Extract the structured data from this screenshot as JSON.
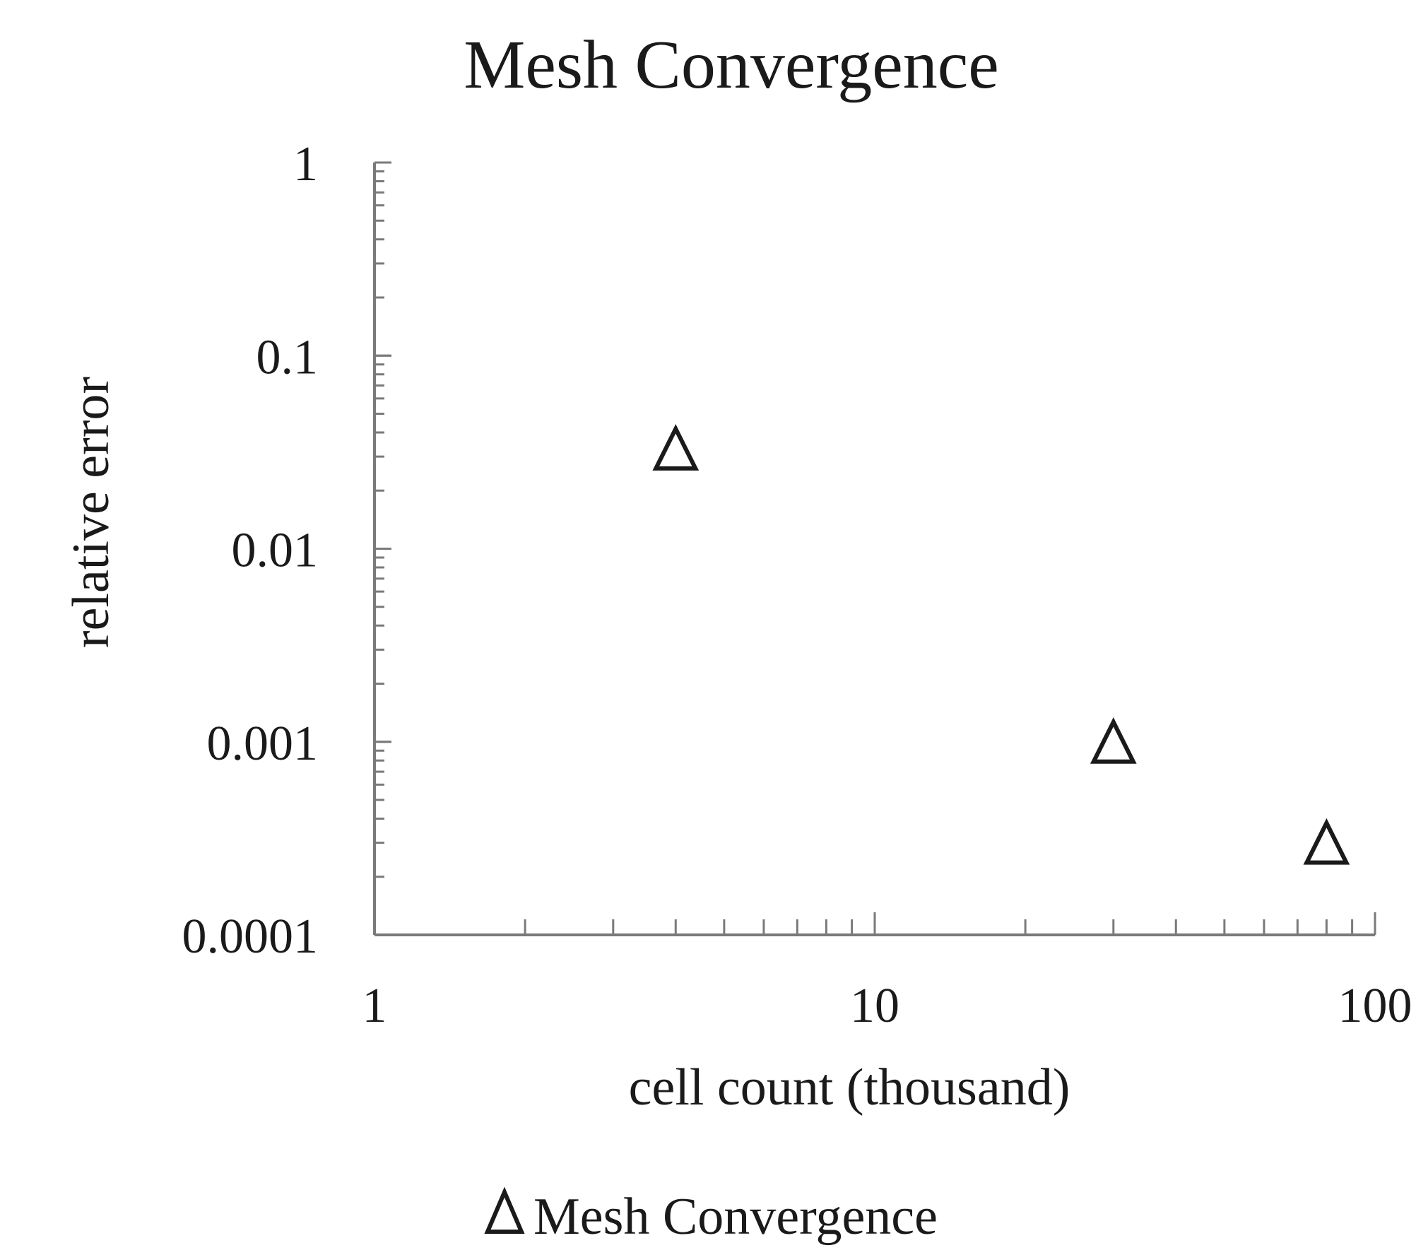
{
  "chart_data": {
    "type": "scatter",
    "title": "Mesh Convergence",
    "xlabel": "cell count (thousand)",
    "ylabel": "relative error",
    "x_scale": "log",
    "y_scale": "log",
    "xlim": [
      1,
      100
    ],
    "ylim": [
      0.0001,
      1
    ],
    "x_ticks": [
      {
        "value": 1,
        "label": "1"
      },
      {
        "value": 10,
        "label": "10"
      },
      {
        "value": 100,
        "label": "100"
      }
    ],
    "y_ticks": [
      {
        "value": 1,
        "label": "1"
      },
      {
        "value": 0.1,
        "label": "0.1"
      },
      {
        "value": 0.01,
        "label": "0.01"
      },
      {
        "value": 0.001,
        "label": "0.001"
      },
      {
        "value": 0.0001,
        "label": "0.0001"
      }
    ],
    "grid": false,
    "legend": {
      "position": "bottom-center",
      "entries": [
        "Mesh Convergence"
      ]
    },
    "series": [
      {
        "name": "Mesh Convergence",
        "marker": "triangle-open",
        "color": "#1a1a1a",
        "points": [
          {
            "x": 4,
            "y": 0.033
          },
          {
            "x": 30,
            "y": 0.001
          },
          {
            "x": 80,
            "y": 0.0003
          }
        ]
      }
    ]
  }
}
